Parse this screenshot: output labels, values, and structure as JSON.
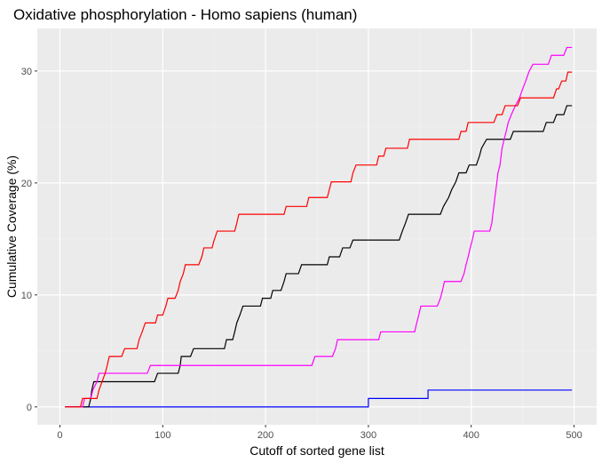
{
  "chart_data": {
    "type": "line",
    "title": "Oxidative phosphorylation - Homo sapiens (human)",
    "xlabel": "Cutoff of sorted gene list",
    "ylabel": "Cumulative Coverage (%)",
    "xlim": [
      -22,
      522
    ],
    "ylim": [
      -1.6,
      33.8
    ],
    "x_ticks": [
      0,
      100,
      200,
      300,
      400,
      500
    ],
    "y_ticks": [
      0,
      10,
      20,
      30
    ],
    "grid": true,
    "legend": "none",
    "series": [
      {
        "color": "#0000ff",
        "points": [
          [
            5,
            0
          ],
          [
            300,
            0
          ],
          [
            300,
            0.75
          ],
          [
            358,
            0.75
          ],
          [
            358,
            1.5
          ],
          [
            498,
            1.5
          ]
        ]
      },
      {
        "color": "#000000",
        "points": [
          [
            5,
            0
          ],
          [
            28,
            0
          ],
          [
            30,
            0.75
          ],
          [
            31,
            1.5
          ],
          [
            33,
            2.25
          ],
          [
            92,
            2.25
          ],
          [
            95,
            3
          ],
          [
            115,
            3
          ],
          [
            117,
            3.7
          ],
          [
            118,
            4.5
          ],
          [
            127,
            4.5
          ],
          [
            130,
            5.2
          ],
          [
            160,
            5.2
          ],
          [
            162,
            6
          ],
          [
            168,
            6
          ],
          [
            170,
            6.7
          ],
          [
            172,
            7.5
          ],
          [
            175,
            8.2
          ],
          [
            178,
            9
          ],
          [
            195,
            9
          ],
          [
            197,
            9.7
          ],
          [
            205,
            9.7
          ],
          [
            207,
            10.4
          ],
          [
            215,
            10.4
          ],
          [
            218,
            11.2
          ],
          [
            220,
            11.9
          ],
          [
            232,
            11.9
          ],
          [
            235,
            12.7
          ],
          [
            260,
            12.7
          ],
          [
            262,
            13.4
          ],
          [
            272,
            13.4
          ],
          [
            275,
            14.2
          ],
          [
            282,
            14.2
          ],
          [
            285,
            14.9
          ],
          [
            330,
            14.9
          ],
          [
            333,
            15.7
          ],
          [
            336,
            16.4
          ],
          [
            339,
            17.2
          ],
          [
            370,
            17.2
          ],
          [
            373,
            17.9
          ],
          [
            378,
            18.7
          ],
          [
            381,
            19.4
          ],
          [
            385,
            20.1
          ],
          [
            388,
            20.9
          ],
          [
            395,
            20.9
          ],
          [
            398,
            21.6
          ],
          [
            405,
            21.6
          ],
          [
            408,
            22.4
          ],
          [
            410,
            23.1
          ],
          [
            415,
            23.9
          ],
          [
            438,
            23.9
          ],
          [
            441,
            24.6
          ],
          [
            470,
            24.6
          ],
          [
            473,
            25.4
          ],
          [
            480,
            25.4
          ],
          [
            483,
            26.1
          ],
          [
            490,
            26.1
          ],
          [
            493,
            26.9
          ],
          [
            498,
            26.9
          ]
        ]
      },
      {
        "color": "#ff00ff",
        "points": [
          [
            5,
            0
          ],
          [
            22,
            0
          ],
          [
            24,
            0.75
          ],
          [
            30,
            0.75
          ],
          [
            32,
            1.5
          ],
          [
            36,
            2.25
          ],
          [
            38,
            3
          ],
          [
            85,
            3
          ],
          [
            88,
            3.7
          ],
          [
            245,
            3.7
          ],
          [
            248,
            4.5
          ],
          [
            265,
            4.5
          ],
          [
            268,
            5.2
          ],
          [
            270,
            6
          ],
          [
            310,
            6
          ],
          [
            312,
            6.7
          ],
          [
            345,
            6.7
          ],
          [
            347,
            7.5
          ],
          [
            349,
            8.2
          ],
          [
            351,
            9
          ],
          [
            367,
            9
          ],
          [
            370,
            9.7
          ],
          [
            372,
            10.4
          ],
          [
            374,
            11.2
          ],
          [
            390,
            11.2
          ],
          [
            393,
            11.9
          ],
          [
            395,
            12.7
          ],
          [
            397,
            13.4
          ],
          [
            399,
            14.2
          ],
          [
            401,
            14.9
          ],
          [
            403,
            15.7
          ],
          [
            418,
            15.7
          ],
          [
            420,
            16.4
          ],
          [
            421,
            17.2
          ],
          [
            422,
            17.9
          ],
          [
            423,
            18.7
          ],
          [
            424,
            19.4
          ],
          [
            425,
            20.1
          ],
          [
            426,
            20.9
          ],
          [
            428,
            21.6
          ],
          [
            429,
            22.4
          ],
          [
            430,
            23.1
          ],
          [
            432,
            23.9
          ],
          [
            434,
            24.6
          ],
          [
            436,
            25.4
          ],
          [
            439,
            26.1
          ],
          [
            443,
            26.9
          ],
          [
            447,
            27.6
          ],
          [
            450,
            28.4
          ],
          [
            453,
            29.1
          ],
          [
            456,
            29.9
          ],
          [
            460,
            30.6
          ],
          [
            475,
            30.6
          ],
          [
            478,
            31.4
          ],
          [
            490,
            31.4
          ],
          [
            493,
            32.1
          ],
          [
            498,
            32.1
          ]
        ]
      },
      {
        "color": "#ff0000",
        "points": [
          [
            5,
            0
          ],
          [
            20,
            0
          ],
          [
            22,
            0.75
          ],
          [
            36,
            0.75
          ],
          [
            38,
            1.5
          ],
          [
            41,
            2.25
          ],
          [
            44,
            3
          ],
          [
            46,
            3.7
          ],
          [
            48,
            4.5
          ],
          [
            60,
            4.5
          ],
          [
            63,
            5.2
          ],
          [
            75,
            5.2
          ],
          [
            77,
            6
          ],
          [
            80,
            6.7
          ],
          [
            83,
            7.5
          ],
          [
            93,
            7.5
          ],
          [
            95,
            8.2
          ],
          [
            100,
            8.2
          ],
          [
            103,
            9
          ],
          [
            105,
            9.7
          ],
          [
            112,
            9.7
          ],
          [
            115,
            10.4
          ],
          [
            117,
            11.2
          ],
          [
            120,
            11.9
          ],
          [
            122,
            12.7
          ],
          [
            135,
            12.7
          ],
          [
            138,
            13.4
          ],
          [
            140,
            14.2
          ],
          [
            148,
            14.2
          ],
          [
            150,
            14.9
          ],
          [
            153,
            15.7
          ],
          [
            170,
            15.7
          ],
          [
            172,
            16.4
          ],
          [
            174,
            17.2
          ],
          [
            218,
            17.2
          ],
          [
            220,
            17.9
          ],
          [
            240,
            17.9
          ],
          [
            242,
            18.7
          ],
          [
            260,
            18.7
          ],
          [
            262,
            19.4
          ],
          [
            264,
            20.1
          ],
          [
            283,
            20.1
          ],
          [
            285,
            20.9
          ],
          [
            288,
            21.6
          ],
          [
            308,
            21.6
          ],
          [
            310,
            22.4
          ],
          [
            315,
            22.4
          ],
          [
            317,
            23.1
          ],
          [
            338,
            23.1
          ],
          [
            340,
            23.9
          ],
          [
            388,
            23.9
          ],
          [
            390,
            24.6
          ],
          [
            395,
            24.6
          ],
          [
            397,
            25.4
          ],
          [
            422,
            25.4
          ],
          [
            425,
            26.1
          ],
          [
            430,
            26.1
          ],
          [
            433,
            26.9
          ],
          [
            445,
            26.9
          ],
          [
            448,
            27.6
          ],
          [
            480,
            27.6
          ],
          [
            483,
            28.4
          ],
          [
            485,
            28.4
          ],
          [
            488,
            29.1
          ],
          [
            492,
            29.1
          ],
          [
            494,
            29.9
          ],
          [
            498,
            29.9
          ]
        ]
      }
    ]
  }
}
